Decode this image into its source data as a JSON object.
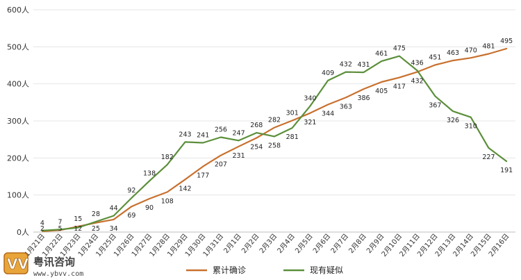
{
  "chart_data": {
    "type": "line",
    "title": "",
    "xlabel": "",
    "ylabel": "",
    "ylim": [
      0,
      600
    ],
    "y_ticks": [
      "0人",
      "100人",
      "200人",
      "300人",
      "400人",
      "500人",
      "600人"
    ],
    "grid": true,
    "legend_position": "bottom-center",
    "categories": [
      "1月21日",
      "1月22日",
      "1月23日",
      "1月24日",
      "1月25日",
      "1月26日",
      "1月27日",
      "1月28日",
      "1月29日",
      "1月30日",
      "1月31日",
      "2月1日",
      "2月2日",
      "2月3日",
      "2月4日",
      "2月5日",
      "2月6日",
      "2月7日",
      "2月8日",
      "2月9日",
      "2月10日",
      "2月11日",
      "2月12日",
      "2月13日",
      "2月14日",
      "2月15日",
      "2月16日"
    ],
    "series": [
      {
        "name": "累计确诊",
        "color": "#C8702E",
        "values": [
          2,
          5,
          15,
          25,
          34,
          69,
          90,
          108,
          142,
          177,
          207,
          231,
          254,
          282,
          301,
          321,
          344,
          363,
          386,
          405,
          417,
          432,
          451,
          463,
          470,
          481,
          495
        ]
      },
      {
        "name": "现有疑似",
        "color": "#5B8F3A",
        "values": [
          4,
          7,
          12,
          28,
          44,
          92,
          138,
          182,
          243,
          241,
          256,
          247,
          268,
          258,
          281,
          340,
          409,
          432,
          431,
          461,
          475,
          436,
          367,
          326,
          310,
          227,
          191
        ]
      }
    ]
  },
  "watermark": {
    "logo_text": "VV",
    "site_name": "粤讯咨询",
    "site_url": "www.ybvv.com"
  }
}
